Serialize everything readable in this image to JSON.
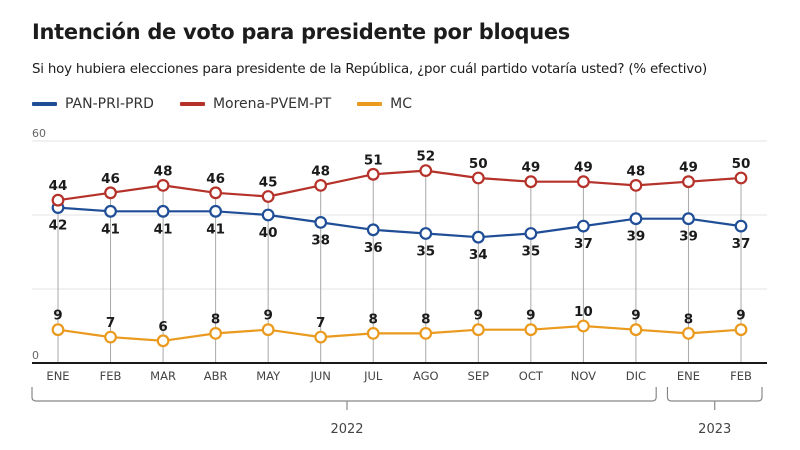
{
  "chart_data": {
    "type": "line",
    "title": "Intención de voto para presidente por bloques",
    "subtitle": "Si hoy hubiera elecciones para presidente de la República, ¿por cuál partido votaría usted? (% efectivo)",
    "xlabel": "",
    "ylabel": "",
    "ylim": [
      0,
      60
    ],
    "yticks": [
      "0",
      "60"
    ],
    "gridlines": [
      20,
      40,
      60
    ],
    "categories": [
      "ENE",
      "FEB",
      "MAR",
      "ABR",
      "MAY",
      "JUN",
      "JUL",
      "AGO",
      "SEP",
      "OCT",
      "NOV",
      "DIC",
      "ENE",
      "FEB"
    ],
    "year_groups": [
      {
        "label": "2022",
        "start": 0,
        "end": 11
      },
      {
        "label": "2023",
        "start": 12,
        "end": 13
      }
    ],
    "legend_position": "top-left",
    "series": [
      {
        "name": "PAN-PRI-PRD",
        "color": "#1f4e97",
        "values": [
          42,
          41,
          41,
          41,
          40,
          38,
          36,
          35,
          34,
          35,
          37,
          39,
          39,
          37
        ],
        "label_position": "below"
      },
      {
        "name": "Morena-PVEM-PT",
        "color": "#b5322a",
        "values": [
          44,
          46,
          48,
          46,
          45,
          48,
          51,
          52,
          50,
          49,
          49,
          48,
          49,
          50
        ],
        "label_position": "above"
      },
      {
        "name": "MC",
        "color": "#ea9a1f",
        "values": [
          9,
          7,
          6,
          8,
          9,
          7,
          8,
          8,
          9,
          9,
          10,
          9,
          8,
          9
        ],
        "label_position": "above"
      }
    ]
  }
}
